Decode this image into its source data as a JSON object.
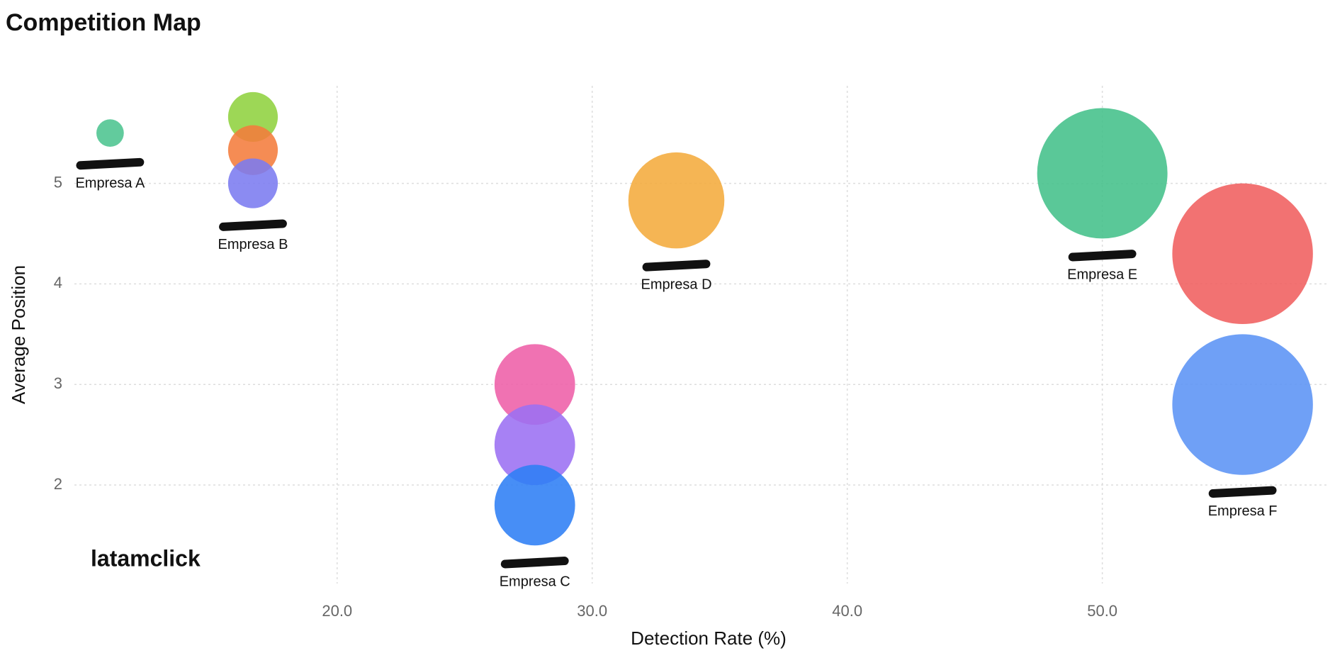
{
  "chart_data": {
    "type": "bubble",
    "title": "Competition Map",
    "x_label": "Detection Rate (%)",
    "y_label": "Average Position",
    "watermark": "latamclick",
    "xlim": [
      9.7,
      58.9
    ],
    "ylim": [
      1.02,
      5.97
    ],
    "xticks": [
      {
        "value": 20,
        "label": "20.0"
      },
      {
        "value": 30,
        "label": "30.0"
      },
      {
        "value": 40,
        "label": "40.0"
      },
      {
        "value": 50,
        "label": "50.0"
      }
    ],
    "yticks": [
      2,
      3,
      4,
      5
    ],
    "grid": true,
    "series": [
      {
        "name": "Empresa A",
        "x": [
          11.1
        ],
        "values": [
          5.5
        ],
        "sizes": [
          16
        ],
        "colors": [
          "#4cc490"
        ]
      },
      {
        "name": "Empresa B",
        "x": [
          16.7,
          16.7,
          16.7
        ],
        "values": [
          5.66,
          5.33,
          5.0
        ],
        "sizes": [
          29,
          29,
          29
        ],
        "colors": [
          "#8fd13f",
          "#f47c3c",
          "#7b7bf0"
        ]
      },
      {
        "name": "Empresa C",
        "x": [
          27.75,
          27.75,
          27.75
        ],
        "values": [
          3.0,
          2.4,
          1.8
        ],
        "sizes": [
          47,
          47,
          47
        ],
        "colors": [
          "#ee5fa7",
          "#9b6ff2",
          "#2e7ef5"
        ]
      },
      {
        "name": "Empresa D",
        "x": [
          33.3
        ],
        "values": [
          4.83
        ],
        "sizes": [
          56
        ],
        "colors": [
          "#f4ab3c"
        ]
      },
      {
        "name": "Empresa E",
        "x": [
          50.0
        ],
        "values": [
          5.1
        ],
        "sizes": [
          76
        ],
        "colors": [
          "#43c08a"
        ]
      },
      {
        "name": "Empresa F",
        "x": [
          55.5,
          55.5
        ],
        "values": [
          4.3,
          2.8
        ],
        "sizes": [
          82,
          82
        ],
        "colors": [
          "#f05f5f",
          "#5b93f5"
        ]
      }
    ]
  }
}
